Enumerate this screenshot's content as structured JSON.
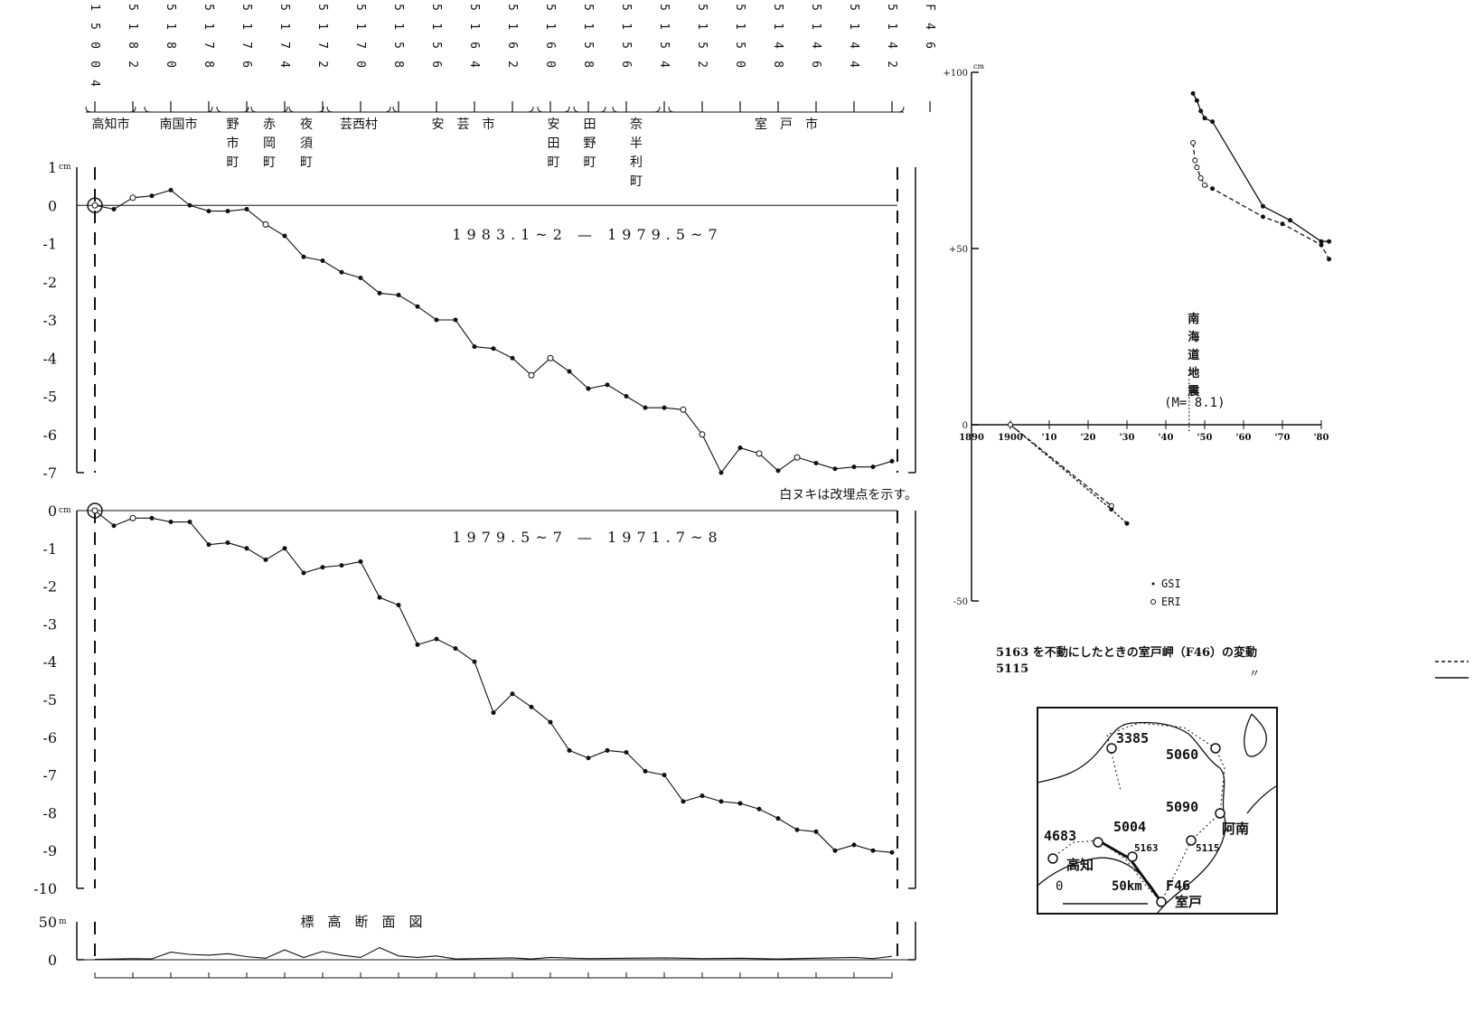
{
  "stations": [
    "15004",
    "5182",
    "5180",
    "5178",
    "5176",
    "5174",
    "5172",
    "5170",
    "5158",
    "5156",
    "5164",
    "5162",
    "5160",
    "5158",
    "5156",
    "5154",
    "5152",
    "5150",
    "5148",
    "5146",
    "5144",
    "5142",
    "F46"
  ],
  "place_groups": [
    {
      "name": "高知市",
      "vertical": false
    },
    {
      "name": "南国市",
      "vertical": false
    },
    {
      "name": "野市町",
      "vertical": true
    },
    {
      "name": "赤岡町",
      "vertical": true
    },
    {
      "name": "夜須町",
      "vertical": true
    },
    {
      "name": "芸西村",
      "vertical": false
    },
    {
      "name": "安　芸　市",
      "vertical": false
    },
    {
      "name": "安田町",
      "vertical": true
    },
    {
      "name": "田野町",
      "vertical": true
    },
    {
      "name": "奈半利町",
      "vertical": true
    },
    {
      "name": "室　戸　市",
      "vertical": false
    }
  ],
  "note": "白ヌキは改埋点を示す。",
  "profile_title": "標　高　断　面　図",
  "chart_data": [
    {
      "type": "line",
      "label": "1983.1~2 — 1979.5~7",
      "unit": "cm",
      "ylim": [
        -7,
        1
      ],
      "yticks": [
        "1",
        "0",
        "-1",
        "-2",
        "-3",
        "-4",
        "-5",
        "-6",
        "-7"
      ],
      "points": [
        [
          0,
          0
        ],
        [
          0.5,
          -0.1
        ],
        [
          1,
          0.2
        ],
        [
          1.5,
          0.25
        ],
        [
          2,
          0.4
        ],
        [
          2.5,
          0
        ],
        [
          3,
          -0.15
        ],
        [
          3.5,
          -0.15
        ],
        [
          4,
          -0.1
        ],
        [
          4.5,
          -0.5
        ],
        [
          5,
          -0.8
        ],
        [
          5.5,
          -1.35
        ],
        [
          6,
          -1.45
        ],
        [
          6.5,
          -1.75
        ],
        [
          7,
          -1.9
        ],
        [
          7.5,
          -2.3
        ],
        [
          8,
          -2.35
        ],
        [
          8.5,
          -2.65
        ],
        [
          9,
          -3.0
        ],
        [
          9.5,
          -3.0
        ],
        [
          10,
          -3.7
        ],
        [
          10.5,
          -3.75
        ],
        [
          11,
          -4.0
        ],
        [
          11.5,
          -4.45
        ],
        [
          12,
          -4.0
        ],
        [
          12.5,
          -4.35
        ],
        [
          13,
          -4.8
        ],
        [
          13.5,
          -4.7
        ],
        [
          14,
          -5.0
        ],
        [
          14.5,
          -5.3
        ],
        [
          15,
          -5.3
        ],
        [
          15.5,
          -5.35
        ],
        [
          16,
          -6.0
        ],
        [
          16.5,
          -7.0
        ],
        [
          17,
          -6.35
        ],
        [
          17.5,
          -6.5
        ],
        [
          18,
          -6.95
        ],
        [
          18.5,
          -6.6
        ],
        [
          19,
          -6.75
        ],
        [
          19.5,
          -6.9
        ],
        [
          20,
          -6.85
        ],
        [
          20.5,
          -6.85
        ],
        [
          21,
          -6.7
        ]
      ],
      "open_points": [
        0,
        2,
        9,
        23,
        24,
        31,
        32,
        35,
        37
      ]
    },
    {
      "type": "line",
      "label": "1979.5~7 — 1971.7~8",
      "unit": "cm",
      "ylim": [
        -10,
        0
      ],
      "yticks": [
        "0",
        "-1",
        "-2",
        "-3",
        "-4",
        "-5",
        "-6",
        "-7",
        "-8",
        "-9",
        "-10"
      ],
      "points": [
        [
          0,
          0
        ],
        [
          0.5,
          -0.4
        ],
        [
          1,
          -0.2
        ],
        [
          1.5,
          -0.2
        ],
        [
          2,
          -0.3
        ],
        [
          2.5,
          -0.3
        ],
        [
          3,
          -0.9
        ],
        [
          3.5,
          -0.85
        ],
        [
          4,
          -1.0
        ],
        [
          4.5,
          -1.3
        ],
        [
          5,
          -1.0
        ],
        [
          5.5,
          -1.65
        ],
        [
          6,
          -1.5
        ],
        [
          6.5,
          -1.45
        ],
        [
          7,
          -1.35
        ],
        [
          7.5,
          -2.3
        ],
        [
          8,
          -2.5
        ],
        [
          8.5,
          -3.55
        ],
        [
          9,
          -3.4
        ],
        [
          9.5,
          -3.65
        ],
        [
          10,
          -4.0
        ],
        [
          10.5,
          -5.35
        ],
        [
          11,
          -4.85
        ],
        [
          11.5,
          -5.2
        ],
        [
          12,
          -5.6
        ],
        [
          12.5,
          -6.35
        ],
        [
          13,
          -6.55
        ],
        [
          13.5,
          -6.35
        ],
        [
          14,
          -6.4
        ],
        [
          14.5,
          -6.9
        ],
        [
          15,
          -7.0
        ],
        [
          15.5,
          -7.7
        ],
        [
          16,
          -7.55
        ],
        [
          16.5,
          -7.7
        ],
        [
          17,
          -7.75
        ],
        [
          17.5,
          -7.9
        ],
        [
          18,
          -8.15
        ],
        [
          18.5,
          -8.45
        ],
        [
          19,
          -8.5
        ],
        [
          19.5,
          -9.0
        ],
        [
          20,
          -8.85
        ],
        [
          20.5,
          -9.0
        ],
        [
          21,
          -9.05
        ]
      ],
      "open_points": [
        0,
        2
      ]
    },
    {
      "type": "area",
      "title": "標　高　断　面　図",
      "unit": "m",
      "ylim": [
        0,
        50
      ],
      "yticks": [
        "50",
        "0"
      ],
      "points": [
        [
          0,
          0.5
        ],
        [
          1,
          1.5
        ],
        [
          1.5,
          1.2
        ],
        [
          2,
          10
        ],
        [
          2.5,
          7
        ],
        [
          3,
          6
        ],
        [
          3.5,
          8
        ],
        [
          4,
          4
        ],
        [
          4.5,
          2
        ],
        [
          5,
          13
        ],
        [
          5.5,
          3
        ],
        [
          6,
          11
        ],
        [
          6.5,
          6
        ],
        [
          7,
          3
        ],
        [
          7.5,
          16
        ],
        [
          8,
          5
        ],
        [
          8.5,
          3
        ],
        [
          9,
          5
        ],
        [
          9.5,
          1
        ],
        [
          10,
          1.5
        ],
        [
          11,
          2.5
        ],
        [
          11.5,
          1
        ],
        [
          12,
          3
        ],
        [
          13,
          1.5
        ],
        [
          14,
          2
        ],
        [
          15,
          2.5
        ],
        [
          16,
          1.5
        ],
        [
          17,
          2
        ],
        [
          18,
          1
        ],
        [
          19,
          2
        ],
        [
          20,
          3
        ],
        [
          20.5,
          1.5
        ],
        [
          21,
          4.5
        ]
      ]
    },
    {
      "type": "line",
      "unit": "cm",
      "xlim": [
        1890,
        1980
      ],
      "ylim": [
        -50,
        100
      ],
      "xticks": [
        "1890",
        "1900",
        "'10",
        "'20",
        "'30",
        "'40",
        "'50",
        "'60",
        "'70",
        "'80"
      ],
      "yticks": [
        "+100",
        "+50",
        "0",
        "-50"
      ],
      "annotation": "南海道地震 (M= 8.1)",
      "event_year": 1946,
      "series": [
        {
          "name": "GSI",
          "marker": "filled",
          "values": [
            [
              1900,
              0
            ],
            [
              1926,
              -24
            ],
            [
              1930,
              -28
            ]
          ]
        },
        {
          "name": "ERI",
          "marker": "open",
          "values": [
            [
              1900,
              0
            ],
            [
              1926,
              -23
            ]
          ]
        },
        {
          "name": "5115",
          "style": "solid",
          "values": [
            [
              1947,
              94
            ],
            [
              1948,
              92
            ],
            [
              1949,
              89
            ],
            [
              1950,
              87
            ],
            [
              1952,
              86
            ],
            [
              1965,
              62
            ],
            [
              1972,
              58
            ],
            [
              1980,
              52
            ],
            [
              1982,
              52
            ]
          ]
        },
        {
          "name": "5163",
          "style": "dashed",
          "values": [
            [
              1947,
              80
            ],
            [
              1947.5,
              75
            ],
            [
              1948,
              73
            ],
            [
              1949,
              70
            ],
            [
              1950,
              68
            ],
            [
              1952,
              67
            ],
            [
              1965,
              59
            ],
            [
              1970,
              57
            ],
            [
              1980,
              51
            ],
            [
              1982,
              47
            ]
          ]
        }
      ],
      "legend": [
        "GSI",
        "ERI"
      ],
      "caption_lines": [
        "5163 を不動にしたときの室戸岬（F46）の変動",
        "5115"
      ],
      "caption_ditto": "〃"
    }
  ],
  "map": {
    "labels": [
      "3385",
      "5060",
      "5090",
      "4683",
      "5004",
      "5163",
      "5115",
      "F46",
      "阿南",
      "高知",
      "室戸"
    ],
    "scale": "50km",
    "scale_zero": "0"
  }
}
